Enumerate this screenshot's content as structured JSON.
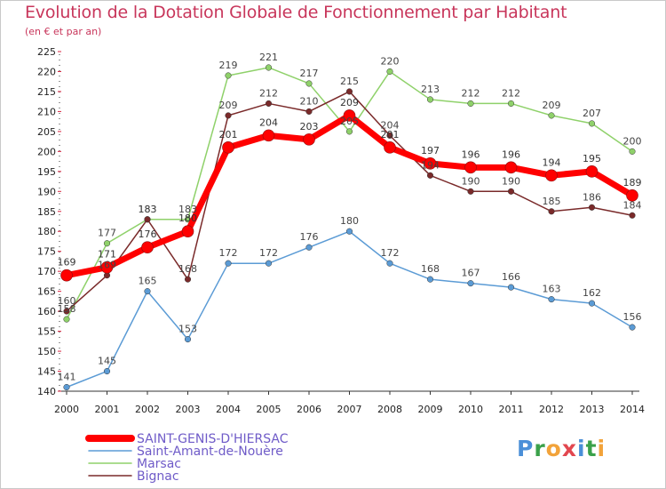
{
  "header": {
    "title": "Evolution de la Dotation Globale de Fonctionnement par Habitant",
    "subtitle": "(en € et par an)"
  },
  "logo": {
    "text": "Proxiti",
    "colors": [
      "#4a8fd8",
      "#3aa14a",
      "#f2a33a",
      "#e2474f",
      "#4a8fd8",
      "#3aa14a",
      "#f2a33a"
    ]
  },
  "chart_data": {
    "type": "line",
    "title": "Evolution de la Dotation Globale de Fonctionnement par Habitant",
    "subtitle": "(en € et par an)",
    "categories": [
      "2000",
      "2001",
      "2002",
      "2003",
      "2004",
      "2005",
      "2006",
      "2007",
      "2008",
      "2009",
      "2010",
      "2011",
      "2012",
      "2013",
      "2014"
    ],
    "ylim": [
      140,
      225
    ],
    "yticks": [
      140,
      145,
      150,
      155,
      160,
      165,
      170,
      175,
      180,
      185,
      190,
      195,
      200,
      205,
      210,
      215,
      220,
      225
    ],
    "grid": false,
    "legend_position": "bottom-left",
    "series": [
      {
        "name": "Saint-Amant-de-Nouère",
        "color": "#5b9bd5",
        "values": [
          141,
          145,
          165,
          153,
          172,
          172,
          176,
          180,
          172,
          168,
          167,
          166,
          163,
          162,
          156
        ]
      },
      {
        "name": "Marsac",
        "color": "#8fd16a",
        "values": [
          158,
          177,
          183,
          183,
          219,
          221,
          217,
          205,
          220,
          213,
          212,
          212,
          209,
          207,
          200
        ]
      },
      {
        "name": "Bignac",
        "color": "#7a2a2a",
        "values": [
          160,
          169,
          183,
          168,
          209,
          212,
          210,
          215,
          204,
          194,
          190,
          190,
          185,
          186,
          184
        ]
      },
      {
        "name": "SAINT-GENIS-D'HIERSAC",
        "color": "#ff0000",
        "values": [
          169,
          171,
          176,
          180,
          201,
          204,
          203,
          209,
          201,
          197,
          196,
          196,
          194,
          195,
          189
        ]
      }
    ],
    "legend": [
      {
        "name": "SAINT-GENIS-D'HIERSAC",
        "color": "#ff0000"
      },
      {
        "name": "Saint-Amant-de-Nouère",
        "color": "#5b9bd5"
      },
      {
        "name": "Marsac",
        "color": "#8fd16a"
      },
      {
        "name": "Bignac",
        "color": "#7a2a2a"
      }
    ]
  }
}
